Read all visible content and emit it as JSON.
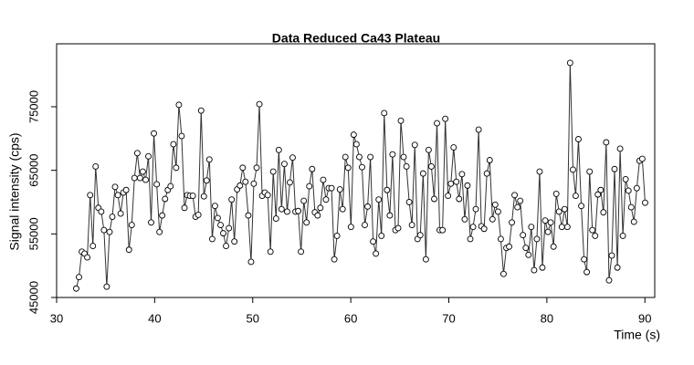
{
  "chart_data": {
    "type": "line",
    "title": "Data Reduced Ca43 Plateau",
    "x_label": "Time (s)",
    "y_label": "Signal intensity (cps)",
    "x": [
      32.0,
      32.28,
      32.57,
      32.85,
      33.13,
      33.42,
      33.7,
      33.98,
      34.26,
      34.55,
      34.83,
      35.11,
      35.4,
      35.68,
      35.96,
      36.25,
      36.53,
      36.81,
      37.09,
      37.38,
      37.66,
      37.94,
      38.23,
      38.51,
      38.79,
      39.08,
      39.36,
      39.64,
      39.92,
      40.21,
      40.49,
      40.77,
      41.06,
      41.34,
      41.62,
      41.91,
      42.19,
      42.47,
      42.75,
      43.04,
      43.32,
      43.6,
      43.89,
      44.17,
      44.45,
      44.74,
      45.02,
      45.3,
      45.58,
      45.87,
      46.15,
      46.43,
      46.72,
      47.0,
      47.28,
      47.57,
      47.85,
      48.13,
      48.41,
      48.7,
      48.98,
      49.26,
      49.55,
      49.83,
      50.11,
      50.4,
      50.68,
      50.96,
      51.24,
      51.53,
      51.81,
      52.09,
      52.38,
      52.66,
      52.94,
      53.23,
      53.51,
      53.79,
      54.07,
      54.36,
      54.64,
      54.92,
      55.21,
      55.49,
      55.77,
      56.06,
      56.34,
      56.62,
      56.9,
      57.19,
      57.47,
      57.75,
      58.04,
      58.32,
      58.6,
      58.89,
      59.17,
      59.45,
      59.73,
      60.02,
      60.3,
      60.58,
      60.87,
      61.15,
      61.43,
      61.72,
      62.0,
      62.28,
      62.56,
      62.85,
      63.13,
      63.41,
      63.7,
      63.98,
      64.26,
      64.55,
      64.83,
      65.11,
      65.39,
      65.68,
      65.96,
      66.24,
      66.53,
      66.81,
      67.09,
      67.38,
      67.66,
      67.94,
      68.22,
      68.51,
      68.79,
      69.07,
      69.36,
      69.64,
      69.92,
      70.21,
      70.49,
      70.77,
      71.05,
      71.34,
      71.62,
      71.9,
      72.19,
      72.47,
      72.75,
      73.04,
      73.32,
      73.6,
      73.88,
      74.17,
      74.45,
      74.73,
      75.02,
      75.3,
      75.58,
      75.87,
      76.15,
      76.43,
      76.71,
      77.0,
      77.28,
      77.56,
      77.85,
      78.13,
      78.41,
      78.7,
      78.98,
      79.26,
      79.54,
      79.83,
      80.11,
      80.39,
      80.68,
      80.96,
      81.24,
      81.53,
      81.81,
      82.09,
      82.37,
      82.66,
      82.94,
      83.22,
      83.51,
      83.79,
      84.07,
      84.36,
      84.64,
      84.92,
      85.2,
      85.49,
      85.77,
      86.05,
      86.34,
      86.62,
      86.9,
      87.19,
      87.47,
      87.75,
      88.03,
      88.32,
      88.6,
      88.88,
      89.17,
      89.45,
      89.73,
      90.02
    ],
    "series": [
      {
        "color": "#333333",
        "values": [
          46400,
          48200,
          52200,
          51900,
          51300,
          61100,
          53100,
          65600,
          59100,
          58500,
          55600,
          46700,
          55300,
          57700,
          62400,
          61100,
          58200,
          61500,
          61900,
          52500,
          56400,
          63800,
          67700,
          63800,
          64800,
          63500,
          67200,
          56800,
          70800,
          62800,
          55300,
          57900,
          60500,
          61900,
          62500,
          69100,
          65400,
          75300,
          70400,
          59100,
          61100,
          61000,
          61000,
          57700,
          58000,
          74400,
          60900,
          63400,
          66700,
          54200,
          59400,
          57500,
          56400,
          55100,
          53100,
          55900,
          60400,
          53800,
          62000,
          62600,
          65400,
          63200,
          57900,
          50600,
          62900,
          65400,
          75400,
          61000,
          61500,
          61100,
          52200,
          64800,
          57400,
          68200,
          58900,
          66000,
          58500,
          63100,
          67000,
          58500,
          58600,
          52200,
          60200,
          56800,
          62500,
          65200,
          58400,
          57900,
          59100,
          63500,
          60400,
          62200,
          62200,
          51000,
          54700,
          62000,
          58900,
          67100,
          65400,
          56100,
          70600,
          69100,
          67100,
          65500,
          56400,
          59300,
          67100,
          53800,
          51900,
          60400,
          54700,
          74000,
          61900,
          57900,
          67500,
          55600,
          55900,
          72800,
          67100,
          65600,
          60000,
          56400,
          69000,
          54200,
          54800,
          64500,
          51000,
          68200,
          65600,
          60500,
          72400,
          55600,
          55600,
          73100,
          61000,
          62900,
          68600,
          63200,
          60500,
          64400,
          57300,
          62600,
          54200,
          56100,
          58900,
          71400,
          56200,
          55800,
          64500,
          66600,
          57300,
          59600,
          58500,
          54200,
          48700,
          52800,
          53000,
          56800,
          61100,
          59200,
          60200,
          54800,
          52800,
          51700,
          56100,
          49300,
          54200,
          64800,
          49700,
          57100,
          55300,
          56800,
          53000,
          61300,
          58500,
          56100,
          58900,
          56100,
          81900,
          65100,
          61000,
          69900,
          59400,
          51000,
          49000,
          64800,
          55600,
          54700,
          61200,
          61900,
          58400,
          69400,
          47700,
          51600,
          65200,
          49700,
          68400,
          54700,
          63600,
          61800,
          59200,
          56900,
          62200,
          66500,
          66800,
          59900
        ]
      }
    ],
    "xlim": [
      30,
      91
    ],
    "ylim": [
      45000,
      84900
    ],
    "xticks": [
      30,
      40,
      50,
      60,
      70,
      80,
      90
    ],
    "yticks": [
      45000,
      55000,
      65000,
      75000
    ]
  }
}
